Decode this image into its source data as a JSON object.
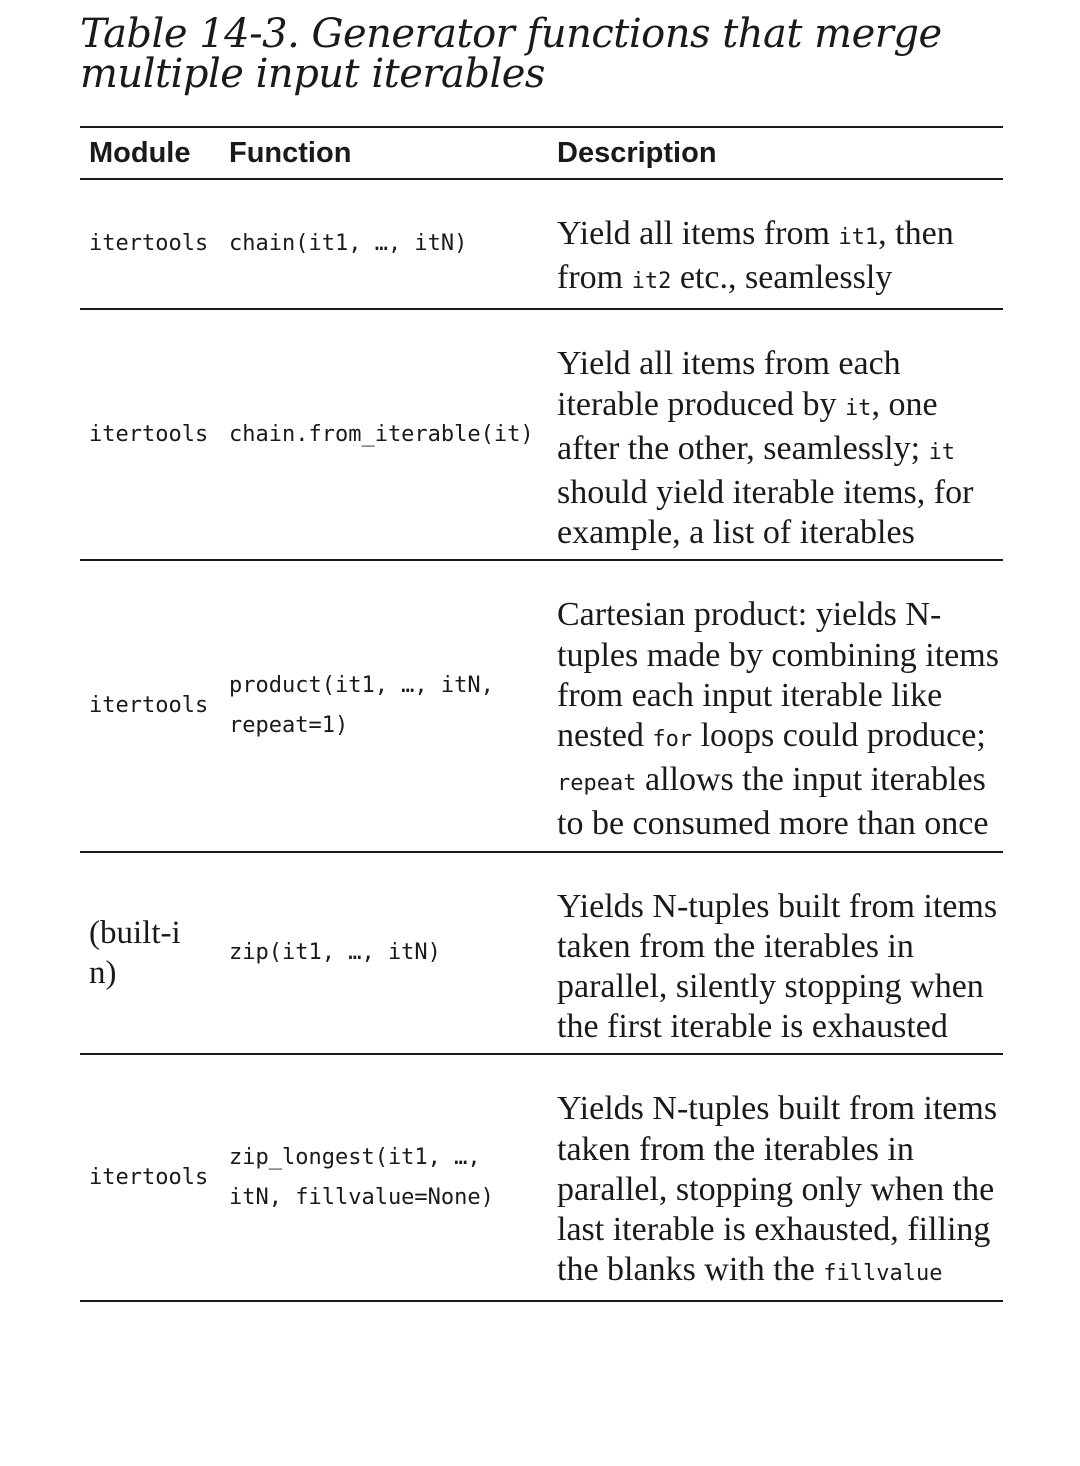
{
  "caption": {
    "line1": "Table 14-3. Generator functions that merge",
    "line2": "multiple input iterables"
  },
  "headers": {
    "module": "Module",
    "function": "Function",
    "description": "Description"
  },
  "rows": [
    {
      "module": "itertools",
      "function": [
        "chain(it1, …, itN)"
      ],
      "description": [
        {
          "t": "Yield all items from "
        },
        {
          "c": "it1"
        },
        {
          "t": ", then from "
        },
        {
          "c": "it2"
        },
        {
          "t": " etc., seamlessly"
        }
      ]
    },
    {
      "module": "itertools",
      "function": [
        "chain.from_iterable(it)"
      ],
      "description": [
        {
          "t": "Yield all items from each iterable produced by "
        },
        {
          "c": "it"
        },
        {
          "t": ", one after the other, seamlessly; "
        },
        {
          "c": "it"
        },
        {
          "t": " should yield iterable items, for example, a list of iterables"
        }
      ]
    },
    {
      "module": "itertools",
      "function": [
        "product(it1, …, itN,",
        "repeat=1)"
      ],
      "description": [
        {
          "t": "Cartesian product: yields N-tuples made by combining items from each input iterable like nested "
        },
        {
          "c": "for"
        },
        {
          "t": " loops could produce; "
        },
        {
          "c": "repeat"
        },
        {
          "t": " allows the input iterables to be consumed more than once"
        }
      ]
    },
    {
      "module": "(built-in)",
      "module_serif": true,
      "function": [
        "zip(it1, …, itN)"
      ],
      "description": [
        {
          "t": "Yields N-tuples built from items taken from the iterables in parallel, silently stopping when the first iterable is exhausted"
        }
      ]
    },
    {
      "module": "itertools",
      "function": [
        "zip_longest(it1, …,",
        "itN, fillvalue=None)"
      ],
      "description": [
        {
          "t": "Yields N-tuples built from items taken from the iterables in parallel, stopping only when the last iterable is exhausted, filling the blanks with the "
        },
        {
          "c": "fillvalue"
        }
      ]
    }
  ]
}
